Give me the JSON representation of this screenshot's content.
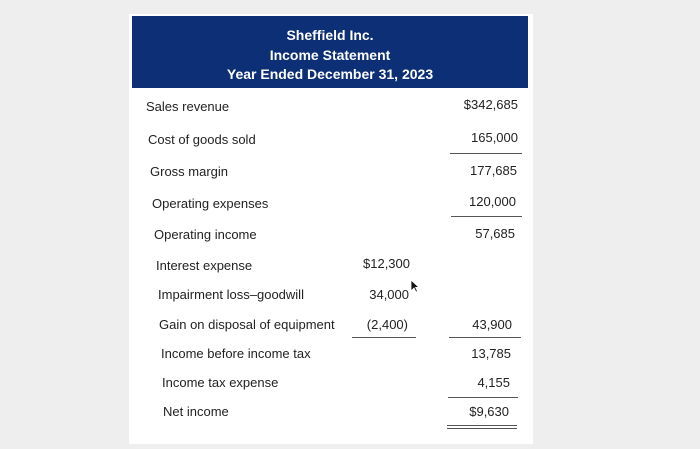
{
  "statement": {
    "company": "Sheffield Inc.",
    "title": "Income Statement",
    "period": "Year Ended December 31, 2023"
  },
  "rows": [
    {
      "label": "Sales revenue",
      "inner": "",
      "outer": "$342,685"
    },
    {
      "label": "Cost of goods sold",
      "inner": "",
      "outer": "165,000"
    },
    {
      "label": "Gross margin",
      "inner": "",
      "outer": "177,685"
    },
    {
      "label": "Operating expenses",
      "inner": "",
      "outer": "120,000"
    },
    {
      "label": "Operating income",
      "inner": "",
      "outer": "57,685"
    },
    {
      "label": "Interest expense",
      "inner": "$12,300",
      "outer": ""
    },
    {
      "label": "Impairment loss–goodwill",
      "inner": "34,000",
      "outer": ""
    },
    {
      "label": "Gain on disposal of equipment",
      "inner": "(2,400)",
      "outer": "43,900"
    },
    {
      "label": "Income before income tax",
      "inner": "",
      "outer": "13,785"
    },
    {
      "label": "Income tax expense",
      "inner": "",
      "outer": "4,155"
    },
    {
      "label": "Net income",
      "inner": "",
      "outer": "$9,630"
    }
  ],
  "colors": {
    "header_bg": "#0d2f75",
    "header_text": "#ffffff",
    "page_bg": "#eeeeee"
  }
}
